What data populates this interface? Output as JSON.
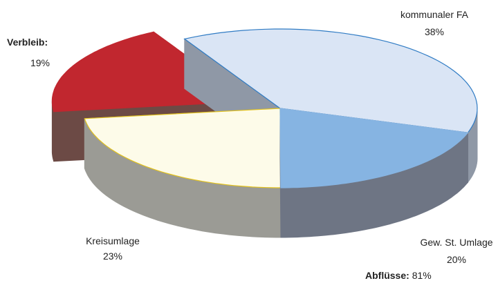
{
  "chart_data": {
    "type": "pie3d",
    "categories": [
      "kommunaler FA",
      "Gew. St. Umlage",
      "Kreisumlage",
      "Verbleib:"
    ],
    "values": [
      38,
      20,
      23,
      19
    ],
    "value_labels": [
      "38%",
      "20%",
      "23%",
      "19%"
    ],
    "colors": [
      "#dae5f5",
      "#86b4e2",
      "#fdfbe9",
      "#c1272f"
    ],
    "side_colors": [
      "#8f98a6",
      "#6e7584",
      "#9b9b95",
      "#6c4a45"
    ],
    "edge_colors": [
      "#2f7bc4",
      "#86b4e2",
      "#e3c21c",
      "#c1272f"
    ],
    "explode": [
      false,
      false,
      false,
      true
    ],
    "annotation": {
      "label": "Abflüsse:",
      "value": 81,
      "value_label": "81%"
    }
  }
}
